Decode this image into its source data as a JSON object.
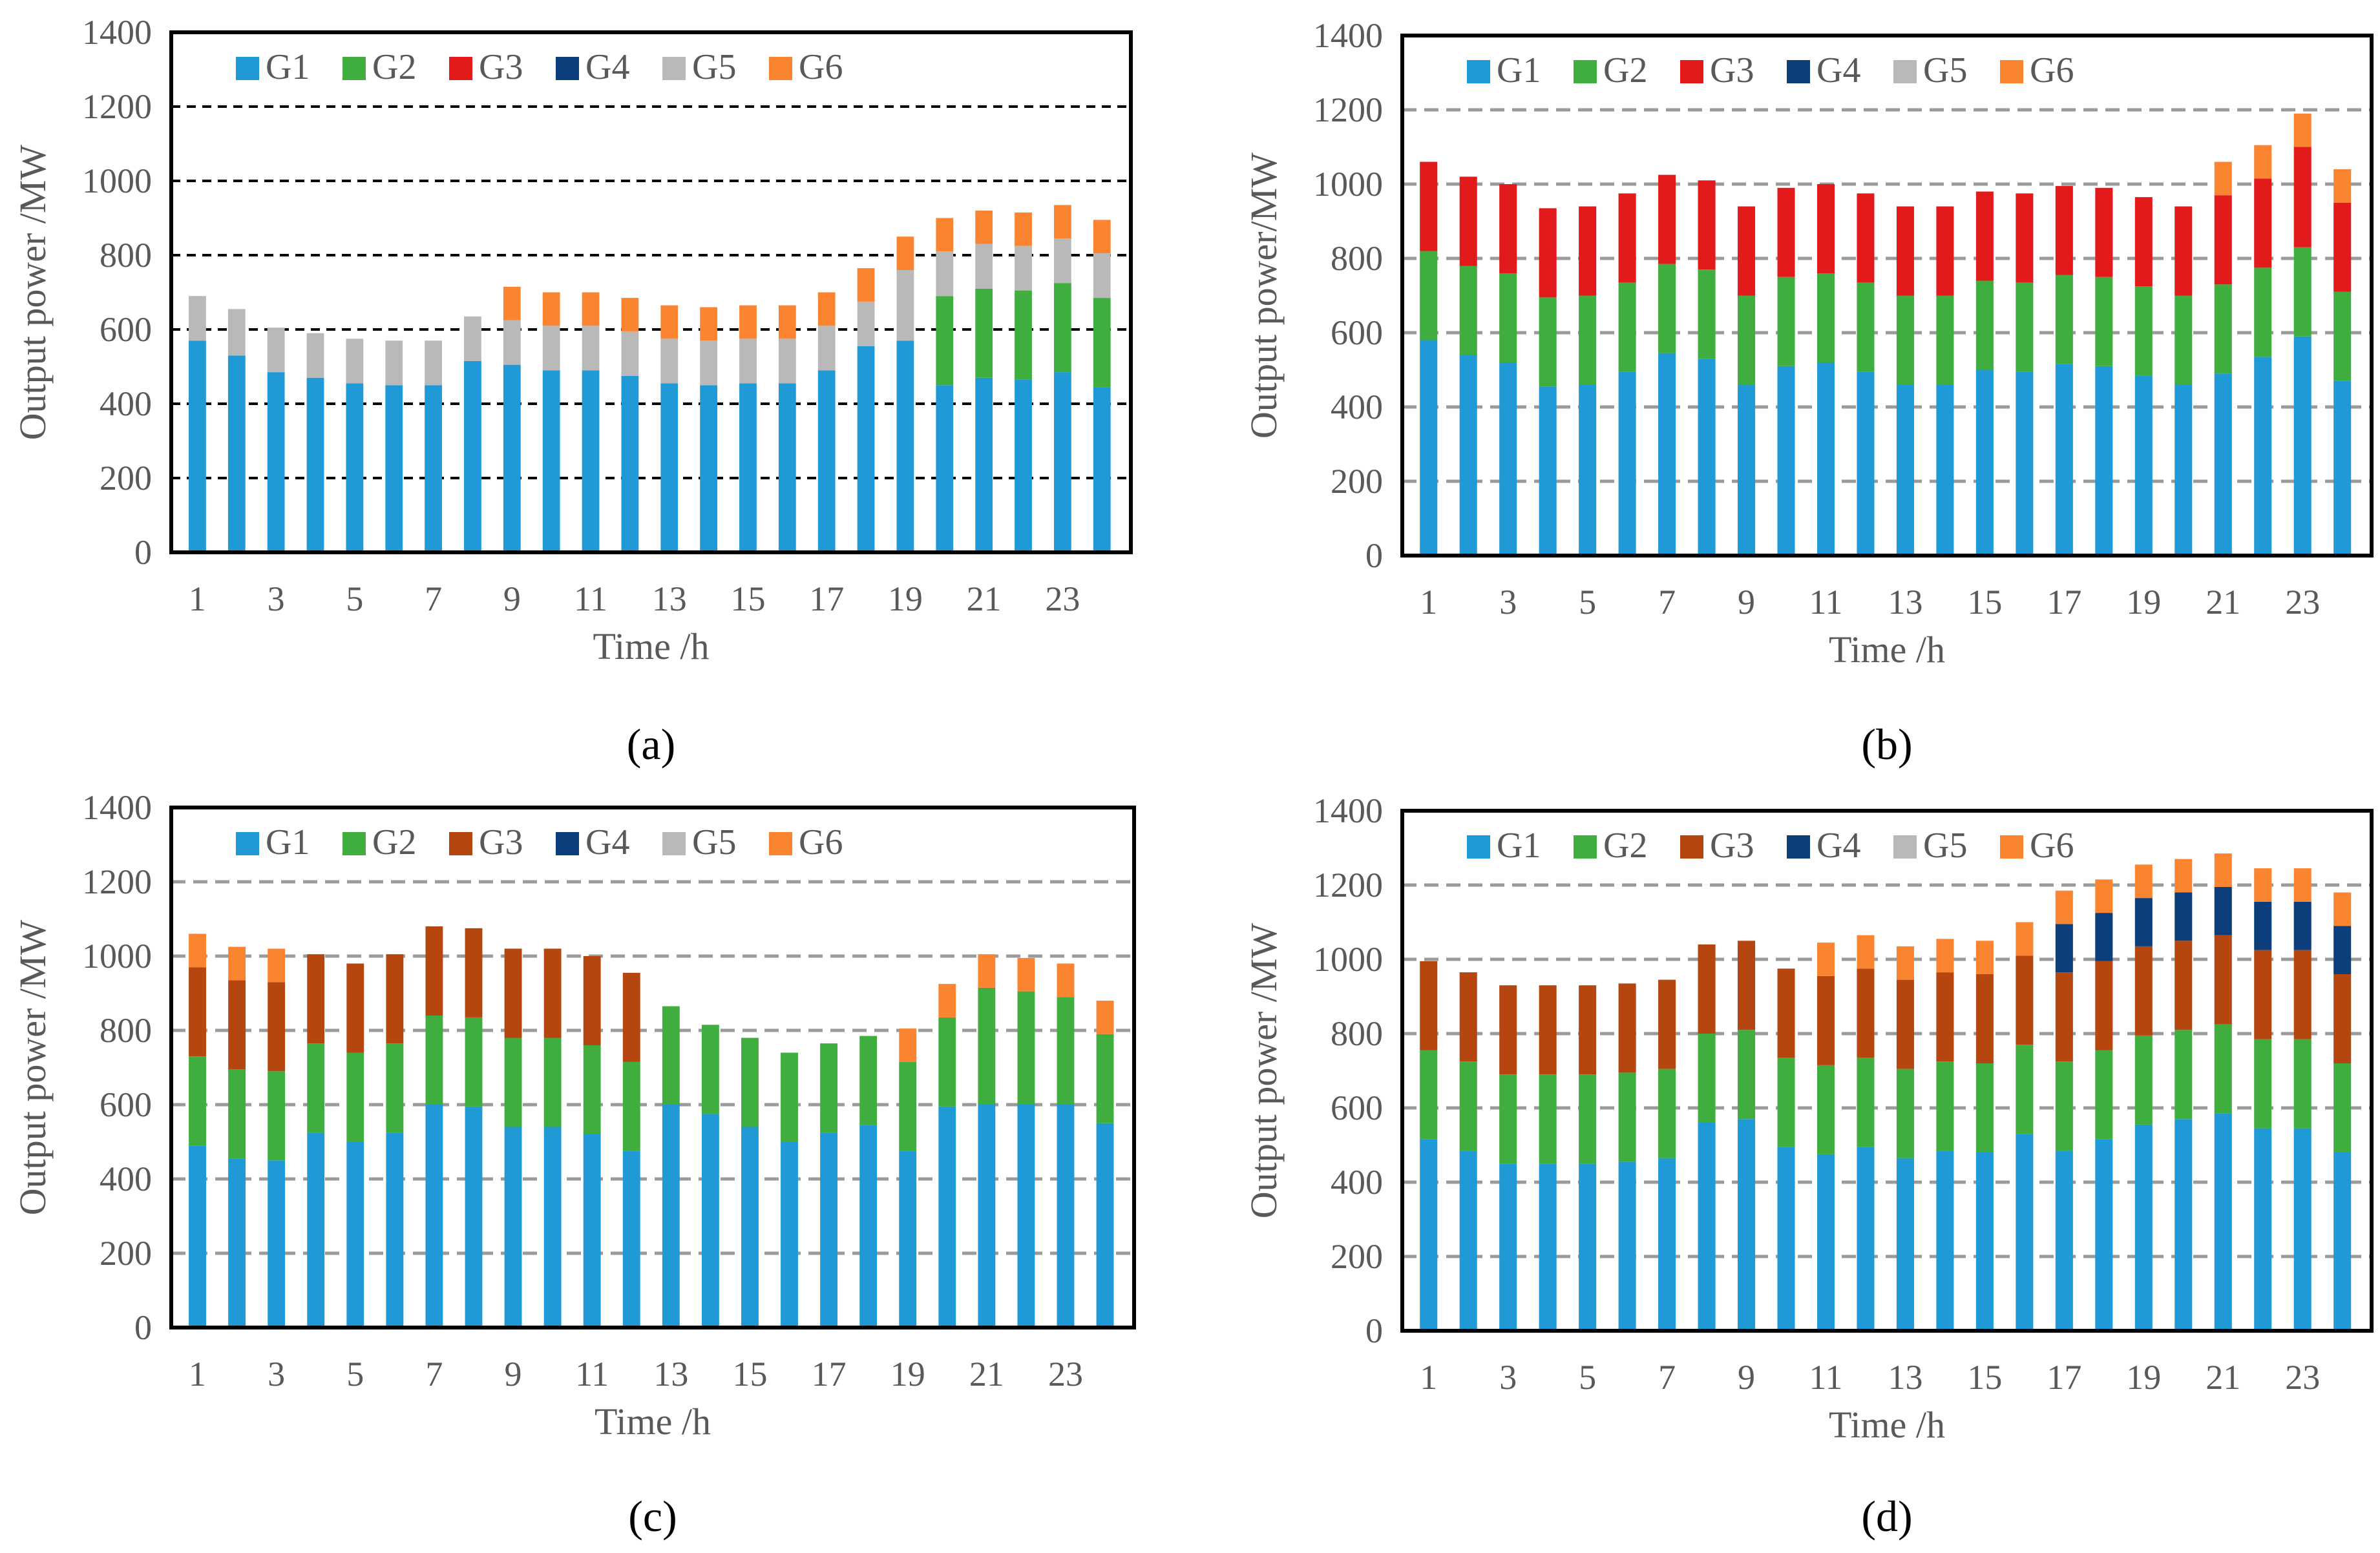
{
  "colors": {
    "G1": "#1f9ad6",
    "G2": "#3fae3f",
    "G3_b": "#e31a1c",
    "G3_brown": "#b5460f",
    "G4": "#0b3e7a",
    "G5": "#b9b9b9",
    "G6": "#fb8430"
  },
  "chart_data": [
    {
      "type": "bar",
      "stacked": true,
      "panel": "(a)",
      "xlabel": "Time /h",
      "ylabel": "Output power /MW",
      "ylim": [
        0,
        1400
      ],
      "yticks": [
        "0",
        "200",
        "400",
        "600",
        "800",
        "1000",
        "1200",
        "1400"
      ],
      "xticks": [
        "1",
        "3",
        "5",
        "7",
        "9",
        "11",
        "13",
        "15",
        "17",
        "19",
        "21",
        "23"
      ],
      "grid": "black-dashed",
      "legend": [
        "G1",
        "G2",
        "G3",
        "G4",
        "G5",
        "G6"
      ],
      "g3_color": "G3_b",
      "categories": [
        1,
        2,
        3,
        4,
        5,
        6,
        7,
        8,
        9,
        10,
        11,
        12,
        13,
        14,
        15,
        16,
        17,
        18,
        19,
        20,
        21,
        22,
        23,
        24
      ],
      "series": [
        {
          "name": "G1",
          "values": [
            570,
            530,
            485,
            470,
            455,
            450,
            450,
            515,
            505,
            490,
            490,
            475,
            455,
            450,
            455,
            455,
            490,
            555,
            570,
            450,
            470,
            465,
            485,
            445
          ]
        },
        {
          "name": "G2",
          "values": [
            0,
            0,
            0,
            0,
            0,
            0,
            0,
            0,
            0,
            0,
            0,
            0,
            0,
            0,
            0,
            0,
            0,
            0,
            0,
            240,
            240,
            240,
            240,
            240
          ]
        },
        {
          "name": "G3",
          "values": [
            0,
            0,
            0,
            0,
            0,
            0,
            0,
            0,
            0,
            0,
            0,
            0,
            0,
            0,
            0,
            0,
            0,
            0,
            0,
            0,
            0,
            0,
            0,
            0
          ]
        },
        {
          "name": "G4",
          "values": [
            0,
            0,
            0,
            0,
            0,
            0,
            0,
            0,
            0,
            0,
            0,
            0,
            0,
            0,
            0,
            0,
            0,
            0,
            0,
            0,
            0,
            0,
            0,
            0
          ]
        },
        {
          "name": "G5",
          "values": [
            120,
            125,
            120,
            120,
            120,
            120,
            120,
            120,
            120,
            120,
            120,
            120,
            120,
            120,
            120,
            120,
            120,
            120,
            190,
            120,
            120,
            120,
            120,
            120
          ]
        },
        {
          "name": "G6",
          "values": [
            0,
            0,
            0,
            0,
            0,
            0,
            0,
            0,
            90,
            90,
            90,
            90,
            90,
            90,
            90,
            90,
            90,
            90,
            90,
            90,
            90,
            90,
            90,
            90
          ]
        }
      ]
    },
    {
      "type": "bar",
      "stacked": true,
      "panel": "(b)",
      "xlabel": "Time /h",
      "ylabel": "Output power/MW",
      "ylim": [
        0,
        1400
      ],
      "yticks": [
        "0",
        "200",
        "400",
        "600",
        "800",
        "1000",
        "1200",
        "1400"
      ],
      "xticks": [
        "1",
        "3",
        "5",
        "7",
        "9",
        "11",
        "13",
        "15",
        "17",
        "19",
        "21",
        "23"
      ],
      "grid": "gray-dashed",
      "legend": [
        "G1",
        "G2",
        "G3",
        "G4",
        "G5",
        "G6"
      ],
      "g3_color": "G3_b",
      "categories": [
        1,
        2,
        3,
        4,
        5,
        6,
        7,
        8,
        9,
        10,
        11,
        12,
        13,
        14,
        15,
        16,
        17,
        18,
        19,
        20,
        21,
        22,
        23,
        24
      ],
      "series": [
        {
          "name": "G1",
          "values": [
            580,
            540,
            520,
            455,
            460,
            495,
            545,
            530,
            460,
            510,
            520,
            495,
            460,
            460,
            500,
            495,
            515,
            510,
            485,
            460,
            490,
            535,
            590,
            470
          ]
        },
        {
          "name": "G2",
          "values": [
            240,
            240,
            240,
            240,
            240,
            240,
            240,
            240,
            240,
            240,
            240,
            240,
            240,
            240,
            240,
            240,
            240,
            240,
            240,
            240,
            240,
            240,
            240,
            240
          ]
        },
        {
          "name": "G3",
          "values": [
            240,
            240,
            240,
            240,
            240,
            240,
            240,
            240,
            240,
            240,
            240,
            240,
            240,
            240,
            240,
            240,
            240,
            240,
            240,
            240,
            240,
            240,
            270,
            240
          ]
        },
        {
          "name": "G4",
          "values": [
            0,
            0,
            0,
            0,
            0,
            0,
            0,
            0,
            0,
            0,
            0,
            0,
            0,
            0,
            0,
            0,
            0,
            0,
            0,
            0,
            0,
            0,
            0,
            0
          ]
        },
        {
          "name": "G5",
          "values": [
            0,
            0,
            0,
            0,
            0,
            0,
            0,
            0,
            0,
            0,
            0,
            0,
            0,
            0,
            0,
            0,
            0,
            0,
            0,
            0,
            0,
            0,
            0,
            0
          ]
        },
        {
          "name": "G6",
          "values": [
            0,
            0,
            0,
            0,
            0,
            0,
            0,
            0,
            0,
            0,
            0,
            0,
            0,
            0,
            0,
            0,
            0,
            0,
            0,
            0,
            90,
            90,
            90,
            90
          ]
        }
      ]
    },
    {
      "type": "bar",
      "stacked": true,
      "panel": "(c)",
      "xlabel": "Time /h",
      "ylabel": "Output power /MW",
      "ylim": [
        0,
        1400
      ],
      "yticks": [
        "0",
        "200",
        "400",
        "600",
        "800",
        "1000",
        "1200",
        "1400"
      ],
      "xticks": [
        "1",
        "3",
        "5",
        "7",
        "9",
        "11",
        "13",
        "15",
        "17",
        "19",
        "21",
        "23"
      ],
      "grid": "gray-dashed",
      "legend": [
        "G1",
        "G2",
        "G3",
        "G4",
        "G5",
        "G6"
      ],
      "g3_color": "G3_brown",
      "categories": [
        1,
        2,
        3,
        4,
        5,
        6,
        7,
        8,
        9,
        10,
        11,
        12,
        13,
        14,
        15,
        16,
        17,
        18,
        19,
        20,
        21,
        22,
        23,
        24
      ],
      "series": [
        {
          "name": "G1",
          "values": [
            490,
            455,
            450,
            525,
            500,
            525,
            600,
            595,
            540,
            540,
            520,
            475,
            600,
            575,
            540,
            500,
            525,
            545,
            475,
            595,
            600,
            600,
            600,
            550
          ]
        },
        {
          "name": "G2",
          "values": [
            240,
            240,
            240,
            240,
            240,
            240,
            240,
            240,
            240,
            240,
            240,
            240,
            265,
            240,
            240,
            240,
            240,
            240,
            240,
            240,
            315,
            305,
            290,
            240
          ]
        },
        {
          "name": "G3",
          "values": [
            240,
            240,
            240,
            240,
            240,
            240,
            240,
            240,
            240,
            240,
            240,
            240,
            0,
            0,
            0,
            0,
            0,
            0,
            0,
            0,
            0,
            0,
            0,
            0
          ]
        },
        {
          "name": "G4",
          "values": [
            0,
            0,
            0,
            0,
            0,
            0,
            0,
            0,
            0,
            0,
            0,
            0,
            0,
            0,
            0,
            0,
            0,
            0,
            0,
            0,
            0,
            0,
            0,
            0
          ]
        },
        {
          "name": "G5",
          "values": [
            0,
            0,
            0,
            0,
            0,
            0,
            0,
            0,
            0,
            0,
            0,
            0,
            0,
            0,
            0,
            0,
            0,
            0,
            0,
            0,
            0,
            0,
            0,
            0
          ]
        },
        {
          "name": "G6",
          "values": [
            90,
            90,
            90,
            0,
            0,
            0,
            0,
            0,
            0,
            0,
            0,
            0,
            0,
            0,
            0,
            0,
            0,
            0,
            90,
            90,
            90,
            90,
            90,
            90
          ]
        }
      ]
    },
    {
      "type": "bar",
      "stacked": true,
      "panel": "(d)",
      "xlabel": "Time /h",
      "ylabel": "Output power /MW",
      "ylim": [
        0,
        1400
      ],
      "yticks": [
        "0",
        "200",
        "400",
        "600",
        "800",
        "1000",
        "1200",
        "1400"
      ],
      "xticks": [
        "1",
        "3",
        "5",
        "7",
        "9",
        "11",
        "13",
        "15",
        "17",
        "19",
        "21",
        "23"
      ],
      "grid": "gray-dashed",
      "legend": [
        "G1",
        "G2",
        "G3",
        "G4",
        "G5",
        "G6"
      ],
      "g3_color": "G3_brown",
      "categories": [
        1,
        2,
        3,
        4,
        5,
        6,
        7,
        8,
        9,
        10,
        11,
        12,
        13,
        14,
        15,
        16,
        17,
        18,
        19,
        20,
        21,
        22,
        23,
        24
      ],
      "series": [
        {
          "name": "G1",
          "values": [
            515,
            485,
            450,
            450,
            450,
            455,
            465,
            560,
            570,
            495,
            475,
            495,
            465,
            485,
            480,
            530,
            485,
            515,
            555,
            570,
            585,
            545,
            545,
            480
          ]
        },
        {
          "name": "G2",
          "values": [
            240,
            240,
            240,
            240,
            240,
            240,
            240,
            240,
            240,
            240,
            240,
            240,
            240,
            240,
            240,
            240,
            240,
            240,
            240,
            240,
            240,
            240,
            240,
            240
          ]
        },
        {
          "name": "G3",
          "values": [
            240,
            240,
            240,
            240,
            240,
            240,
            240,
            240,
            240,
            240,
            240,
            240,
            240,
            240,
            240,
            240,
            240,
            240,
            240,
            240,
            240,
            240,
            240,
            240
          ]
        },
        {
          "name": "G4",
          "values": [
            0,
            0,
            0,
            0,
            0,
            0,
            0,
            0,
            0,
            0,
            0,
            0,
            0,
            0,
            0,
            0,
            130,
            130,
            130,
            130,
            130,
            130,
            130,
            130
          ]
        },
        {
          "name": "G5",
          "values": [
            0,
            0,
            0,
            0,
            0,
            0,
            0,
            0,
            0,
            0,
            0,
            0,
            0,
            0,
            0,
            0,
            0,
            0,
            0,
            0,
            0,
            0,
            0,
            0
          ]
        },
        {
          "name": "G6",
          "values": [
            0,
            0,
            0,
            0,
            0,
            0,
            0,
            0,
            0,
            0,
            90,
            90,
            90,
            90,
            90,
            90,
            90,
            90,
            90,
            90,
            90,
            90,
            90,
            90
          ]
        }
      ]
    }
  ]
}
